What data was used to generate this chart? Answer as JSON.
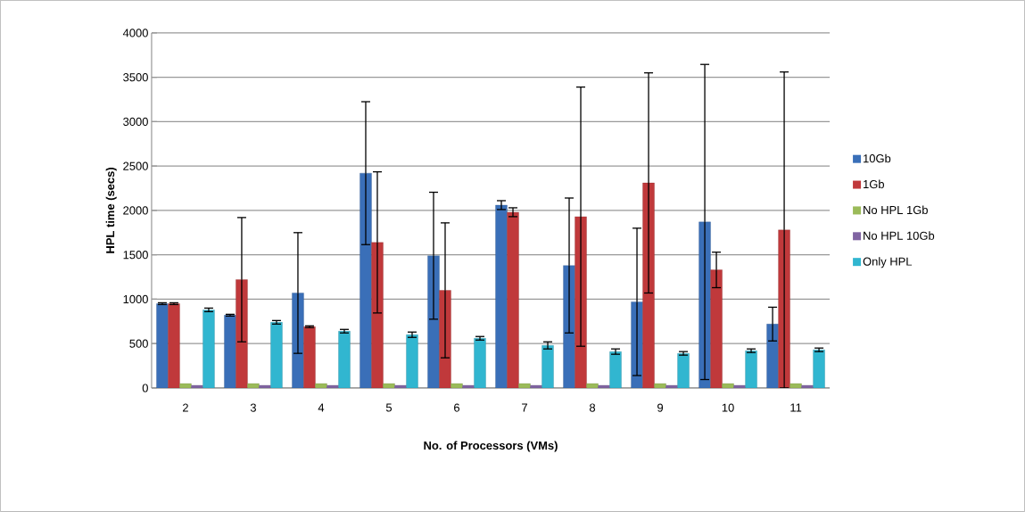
{
  "chart_data": {
    "type": "bar",
    "xlabel": "No. of Processors (VMs)",
    "ylabel": "HPL time (secs)",
    "categories": [
      "2",
      "3",
      "4",
      "5",
      "6",
      "7",
      "8",
      "9",
      "10",
      "11"
    ],
    "series": [
      {
        "name": "10Gb",
        "color": "#3a6fb8",
        "values": [
          950,
          820,
          1070,
          2420,
          1490,
          2060,
          1380,
          970,
          1870,
          720
        ],
        "errors": [
          10,
          10,
          680,
          805,
          715,
          50,
          760,
          830,
          1775,
          190
        ]
      },
      {
        "name": "1Gb",
        "color": "#c0393b",
        "values": [
          950,
          1220,
          690,
          1640,
          1100,
          1980,
          1930,
          2310,
          1330,
          1780
        ],
        "errors": [
          10,
          700,
          10,
          795,
          760,
          50,
          1460,
          1240,
          200,
          1780
        ]
      },
      {
        "name": "No HPL 1Gb",
        "color": "#9bbb59",
        "values": [
          50,
          50,
          50,
          50,
          50,
          50,
          50,
          50,
          50,
          50
        ]
      },
      {
        "name": "No HPL 10Gb",
        "color": "#8064a2",
        "values": [
          30,
          30,
          30,
          30,
          30,
          30,
          30,
          30,
          30,
          30
        ]
      },
      {
        "name": "Only HPL",
        "color": "#31b6d0",
        "values": [
          880,
          740,
          640,
          600,
          560,
          480,
          410,
          390,
          420,
          430
        ],
        "errors": [
          20,
          20,
          20,
          30,
          20,
          40,
          30,
          20,
          20,
          20
        ]
      }
    ],
    "ylim": [
      0,
      4000
    ],
    "yticks": [
      0,
      500,
      1000,
      1500,
      2000,
      2500,
      3000,
      3500,
      4000
    ],
    "grid": "y",
    "legend": "right"
  }
}
